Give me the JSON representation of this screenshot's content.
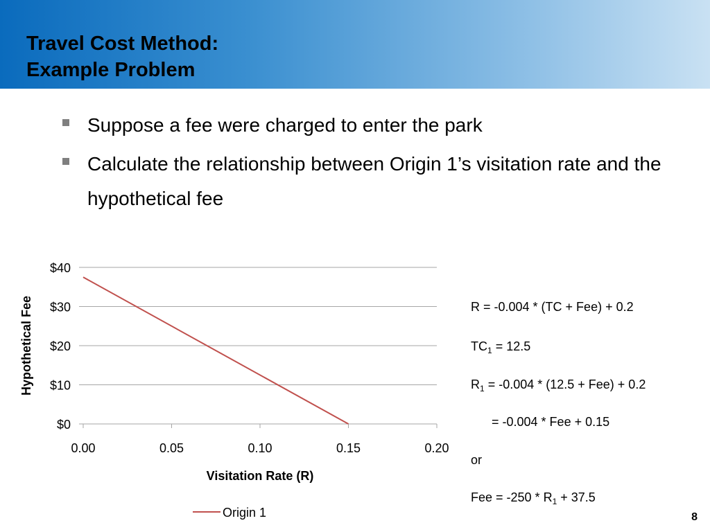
{
  "title": {
    "line1": "Travel Cost Method:",
    "line2": "Example Problem"
  },
  "bullets": [
    "Suppose a fee were charged to enter the park",
    "Calculate the relationship between Origin 1’s visitation rate and the hypothetical fee"
  ],
  "equations": {
    "eq1": "R = -0.004 * (TC + Fee) + 0.2",
    "eq2_a": "TC",
    "eq2_sub": "1",
    "eq2_b": " = 12.5",
    "eq3_a": "R",
    "eq3_sub": "1",
    "eq3_b": " = -0.004 * (12.5 + Fee) + 0.2",
    "eq4": "= -0.004 * Fee + 0.15",
    "eq5": "or",
    "eq6_a": "Fee = -250 * R",
    "eq6_sub": "1",
    "eq6_b": " + 37.5"
  },
  "page_number": "8",
  "colors": {
    "line": "#c0504d",
    "grid": "#a6a6a6",
    "bullet": "#7f7f7f"
  },
  "chart_data": {
    "type": "line",
    "xlabel": "Visitation Rate (R)",
    "ylabel": "Hypothetical Fee",
    "x_ticks": [
      "0.00",
      "0.05",
      "0.10",
      "0.15",
      "0.20"
    ],
    "y_ticks": [
      "$0",
      "$10",
      "$20",
      "$30",
      "$40"
    ],
    "xlim": [
      0,
      0.2
    ],
    "ylim": [
      0,
      40
    ],
    "grid": "horizontal",
    "legend": "bottom",
    "series": [
      {
        "name": "Origin 1",
        "x": [
          0,
          0.15
        ],
        "y": [
          37.5,
          0
        ]
      }
    ]
  }
}
